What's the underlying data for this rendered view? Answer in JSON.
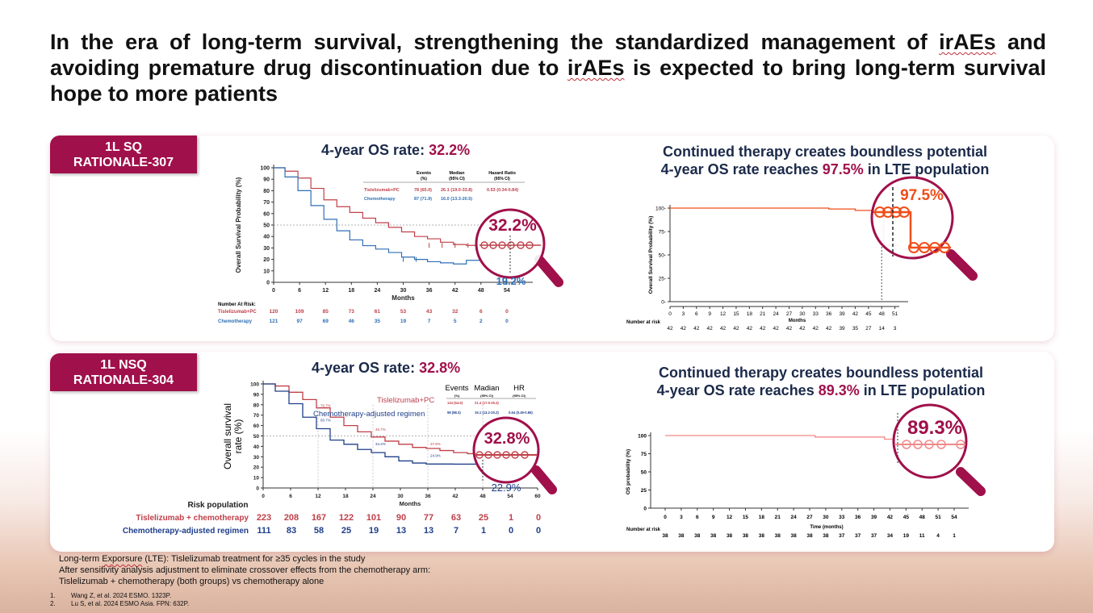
{
  "headline": {
    "part1": "In the era of long-term survival, strengthening the standardized management of ",
    "irAEs1": "irAEs",
    "part2": " and avoiding premature drug discontinuation due to ",
    "irAEs2": "irAEs",
    "part3": " is expected to bring long-term survival hope to more patients"
  },
  "colors": {
    "accent": "#a0104b",
    "tisle": "#c0404a",
    "chemo": "#2f6fb5",
    "lte_orange": "#f04e1a",
    "lte_pink": "#f08a8a"
  },
  "panel1": {
    "tag_line1": "1L SQ",
    "tag_line2": "RATIONALE-307",
    "os_label": "4-year OS rate: ",
    "os_value": "32.2%",
    "lte_line1": "Continued therapy creates boundless potential",
    "lte_line2_pre": "4-year OS rate reaches ",
    "lte_value": "97.5%",
    "lte_line2_post": " in LTE population"
  },
  "panel2": {
    "tag_line1": "1L NSQ",
    "tag_line2": "RATIONALE-304",
    "os_label": "4-year OS rate: ",
    "os_value": "32.8%",
    "lte_line1": "Continued therapy creates boundless potential",
    "lte_line2_pre": "4-year OS rate reaches ",
    "lte_value": "89.3%",
    "lte_line2_post": " in LTE population"
  },
  "chart_data": [
    {
      "type": "line",
      "title": "4-year OS rate: 32.2%",
      "ylabel": "Overall Survival Probability (%)",
      "xlabel": "Months",
      "xlim": [
        0,
        60
      ],
      "ylim": [
        0,
        100
      ],
      "xticks": [
        0,
        6,
        12,
        18,
        24,
        30,
        36,
        42,
        48,
        54
      ],
      "yticks": [
        0,
        10,
        20,
        30,
        40,
        50,
        60,
        70,
        80,
        90,
        100
      ],
      "table_headers": [
        "Events (%)",
        "Median (95% CI)",
        "Hazard Ratio (95% CI)"
      ],
      "series": [
        {
          "name": "Tislelizumab+PC",
          "events": "78 (65.0)",
          "median": "26.1 (19.0-33.8)",
          "hr": "0.53 (0.34-0.84)",
          "x": [
            0,
            3,
            6,
            9,
            12,
            15,
            18,
            21,
            24,
            27,
            30,
            33,
            36,
            39,
            42,
            45,
            48,
            51,
            54
          ],
          "y": [
            100,
            97,
            91,
            82,
            72,
            66,
            61,
            56,
            52,
            48,
            44,
            40,
            38,
            35,
            33,
            32.2,
            32.2,
            32.2,
            32.2
          ],
          "risk": [
            "120",
            "109",
            "85",
            "73",
            "61",
            "53",
            "43",
            "32",
            "6",
            "0"
          ]
        },
        {
          "name": "Chemotherapy",
          "events": "87 (71.9)",
          "median": "16.0 (13.3-20.5)",
          "hr": "",
          "x": [
            0,
            3,
            6,
            9,
            12,
            15,
            18,
            21,
            24,
            27,
            30,
            33,
            36,
            39,
            42,
            45,
            48
          ],
          "y": [
            100,
            92,
            80,
            67,
            55,
            45,
            37,
            32,
            29,
            26,
            22,
            20,
            18,
            17,
            16,
            19.2,
            19.2
          ],
          "risk": [
            "121",
            "97",
            "69",
            "46",
            "35",
            "19",
            "7",
            "5",
            "2",
            "0"
          ]
        }
      ],
      "risk_title": "Number At Risk:",
      "annotations": [
        "32.2%",
        "19.2%"
      ]
    },
    {
      "type": "line",
      "title": "4-year OS rate: 97.5%",
      "ylabel": "Overall Survival Probability (%)",
      "xlabel": "Months",
      "xlim": [
        0,
        54
      ],
      "ylim": [
        0,
        100
      ],
      "xticks": [
        0,
        3,
        6,
        9,
        12,
        15,
        18,
        21,
        24,
        27,
        30,
        33,
        36,
        39,
        42,
        45,
        48,
        51
      ],
      "yticks": [
        0,
        25,
        50,
        75,
        100
      ],
      "series": [
        {
          "name": "LTE population",
          "x": [
            0,
            30,
            36,
            40,
            42,
            45,
            47,
            48,
            48.5,
            52
          ],
          "y": [
            100,
            100,
            99,
            99,
            97.5,
            97.5,
            97.5,
            97.5,
            60,
            60
          ]
        }
      ],
      "risk_title": "Number at risk",
      "risk": [
        "42",
        "42",
        "42",
        "42",
        "42",
        "42",
        "42",
        "42",
        "42",
        "42",
        "42",
        "42",
        "42",
        "39",
        "35",
        "27",
        "14",
        "3"
      ],
      "annotations": [
        "97.5%"
      ]
    },
    {
      "type": "line",
      "title": "4-year OS rate: 32.8%",
      "ylabel": "Overall survival rate (%)",
      "xlabel": "Months",
      "xlim": [
        0,
        60
      ],
      "ylim": [
        0,
        100
      ],
      "xticks": [
        0,
        6,
        12,
        18,
        24,
        30,
        36,
        42,
        48,
        54,
        60
      ],
      "yticks": [
        0,
        10,
        20,
        30,
        40,
        50,
        60,
        70,
        80,
        90,
        100
      ],
      "table_headers": [
        "Events",
        "Madian",
        "HR"
      ],
      "table_subheaders": [
        "(%)",
        "(95% CI)",
        "(95% CI)"
      ],
      "series": [
        {
          "name": "Tislelizumab+PC",
          "events": "144 (64.6)",
          "median": "21.4 (17.9-25.4)",
          "hr": "",
          "x": [
            0,
            3,
            6,
            9,
            12,
            15,
            18,
            21,
            24,
            27,
            30,
            33,
            36,
            39,
            42,
            45,
            48,
            51,
            54,
            57
          ],
          "y": [
            100,
            98,
            92,
            85,
            77,
            68,
            60,
            54,
            49,
            45,
            42,
            39,
            38,
            36,
            34,
            33,
            32.8,
            32.8,
            32.8,
            32.8
          ],
          "risk": [
            "223",
            "208",
            "167",
            "122",
            "101",
            "90",
            "77",
            "63",
            "25",
            "1",
            "0"
          ]
        },
        {
          "name": "Chemotherapy-adjusted regimen",
          "events": "98 (88.3)",
          "median": "15.1 (13.2-20.2)",
          "hr": "0.64 (0.49-0.86)",
          "x": [
            0,
            3,
            6,
            9,
            12,
            15,
            18,
            21,
            24,
            27,
            30,
            33,
            36,
            39,
            42,
            45,
            48
          ],
          "y": [
            100,
            93,
            81,
            68,
            57,
            46,
            42,
            37,
            34,
            30,
            26,
            24,
            23,
            23,
            22.9,
            22.9,
            22.9
          ],
          "risk": [
            "111",
            "83",
            "58",
            "25",
            "19",
            "13",
            "13",
            "7",
            "1",
            "0",
            "0"
          ]
        }
      ],
      "point_labels": [
        "76.7%",
        "60.7%",
        "46.7%",
        "34.2%",
        "37.8%",
        "24.9%"
      ],
      "risk_title": "Risk population",
      "risk_row_labels": [
        "Tislelizumab + chemotherapy",
        "Chemotherapy-adjusted regimen"
      ],
      "annotations": [
        "32.8%",
        "22.9%"
      ]
    },
    {
      "type": "line",
      "title": "4-year OS rate: 89.3%",
      "ylabel": "OS probability (%)",
      "xlabel": "Time (months)",
      "xlim": [
        0,
        54
      ],
      "ylim": [
        0,
        100
      ],
      "xticks": [
        0,
        3,
        6,
        9,
        12,
        15,
        18,
        21,
        24,
        27,
        30,
        33,
        36,
        39,
        42,
        45,
        48,
        51,
        54
      ],
      "yticks": [
        0,
        25,
        50,
        75,
        100
      ],
      "series": [
        {
          "name": "LTE population",
          "x": [
            0,
            27,
            28,
            39,
            41,
            43,
            45,
            48,
            51,
            54
          ],
          "y": [
            100,
            100,
            98,
            98,
            95,
            91,
            89.3,
            89.3,
            89.3,
            89.3
          ]
        }
      ],
      "risk_title": "Number at risk",
      "risk": [
        "38",
        "38",
        "38",
        "38",
        "38",
        "38",
        "38",
        "38",
        "38",
        "38",
        "38",
        "37",
        "37",
        "37",
        "34",
        "19",
        "11",
        "4",
        "1"
      ],
      "annotations": [
        "89.3%"
      ]
    }
  ],
  "footer": {
    "line1_pre": "Long-term ",
    "line1_word": "Exporsure",
    "line1_post": " (LTE):  Tislelizumab treatment for ≥35 cycles in the study",
    "line2": "After sensitivity analysis adjustment to eliminate crossover effects from the chemotherapy arm:",
    "line3": "Tislelizumab + chemotherapy (both groups) vs chemotherapy alone"
  },
  "references": [
    {
      "n": "1.",
      "text": "Wang Z, et al. 2024 ESMO. 1323P."
    },
    {
      "n": "2.",
      "text": "Lu S, et al. 2024 ESMO Asia.  FPN:  632P."
    }
  ]
}
